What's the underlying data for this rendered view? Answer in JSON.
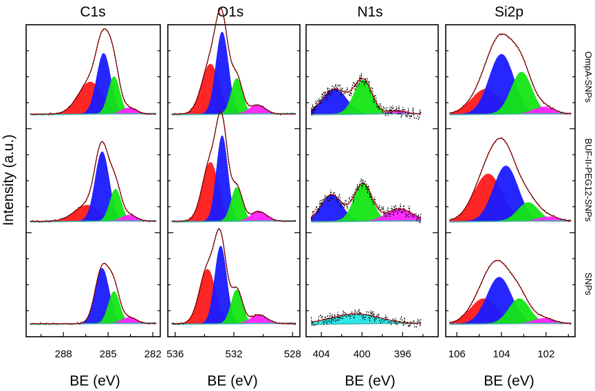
{
  "chart_data": {
    "type": "line",
    "description_kind": "xps-deconvolution-grid",
    "ylabel": "Intensity (a.u.)",
    "xlabel": "BE (eV)",
    "rows": [
      "OmpA-SNPs",
      "BUF-II-PEG12-SNPs",
      "SNPs"
    ],
    "component_colors": {
      "red": "#ff1a1a",
      "blue": "#1a1aff",
      "green": "#14e614",
      "magenta": "#ff22ff",
      "cyan": "#22e6e6",
      "envelope": "#cc0000",
      "data": "#000000",
      "baseline": "#3cb3a8"
    },
    "panels": [
      {
        "title": "C1s",
        "xlim": [
          290.5,
          281.5
        ],
        "ticks": [
          288,
          285,
          282
        ],
        "tick_labels": [
          "288",
          "285",
          "282"
        ],
        "rows": [
          {
            "noise": 0.01,
            "components": [
              {
                "color": "red",
                "center": 286.2,
                "height": 0.36,
                "fwhm": 1.9
              },
              {
                "color": "blue",
                "center": 285.3,
                "height": 0.68,
                "fwhm": 1.1
              },
              {
                "color": "green",
                "center": 284.6,
                "height": 0.42,
                "fwhm": 0.9
              },
              {
                "color": "magenta",
                "center": 283.6,
                "height": 0.07,
                "fwhm": 1.2
              }
            ]
          },
          {
            "noise": 0.01,
            "components": [
              {
                "color": "red",
                "center": 286.4,
                "height": 0.18,
                "fwhm": 2.0
              },
              {
                "color": "blue",
                "center": 285.4,
                "height": 0.78,
                "fwhm": 1.1
              },
              {
                "color": "green",
                "center": 284.5,
                "height": 0.36,
                "fwhm": 0.9
              },
              {
                "color": "magenta",
                "center": 283.6,
                "height": 0.07,
                "fwhm": 1.2
              }
            ]
          },
          {
            "noise": 0.01,
            "components": [
              {
                "color": "blue",
                "center": 285.4,
                "height": 0.62,
                "fwhm": 1.1
              },
              {
                "color": "green",
                "center": 284.6,
                "height": 0.36,
                "fwhm": 0.9
              },
              {
                "color": "magenta",
                "center": 283.6,
                "height": 0.07,
                "fwhm": 1.2
              }
            ]
          }
        ]
      },
      {
        "title": "O1s",
        "xlim": [
          536.5,
          527.5
        ],
        "ticks": [
          536,
          532,
          528
        ],
        "tick_labels": [
          "536",
          "532",
          "528"
        ],
        "rows": [
          {
            "noise": 0.01,
            "components": [
              {
                "color": "red",
                "center": 533.6,
                "height": 0.56,
                "fwhm": 1.4
              },
              {
                "color": "blue",
                "center": 532.8,
                "height": 0.92,
                "fwhm": 1.0
              },
              {
                "color": "green",
                "center": 531.8,
                "height": 0.4,
                "fwhm": 0.9
              },
              {
                "color": "magenta",
                "center": 530.4,
                "height": 0.1,
                "fwhm": 1.3
              }
            ]
          },
          {
            "noise": 0.01,
            "components": [
              {
                "color": "red",
                "center": 533.6,
                "height": 0.66,
                "fwhm": 1.3
              },
              {
                "color": "blue",
                "center": 532.8,
                "height": 0.96,
                "fwhm": 0.9
              },
              {
                "color": "green",
                "center": 531.8,
                "height": 0.38,
                "fwhm": 0.9
              },
              {
                "color": "magenta",
                "center": 530.3,
                "height": 0.11,
                "fwhm": 1.3
              }
            ]
          },
          {
            "noise": 0.01,
            "components": [
              {
                "color": "red",
                "center": 533.8,
                "height": 0.61,
                "fwhm": 1.3
              },
              {
                "color": "blue",
                "center": 532.9,
                "height": 0.87,
                "fwhm": 0.95
              },
              {
                "color": "green",
                "center": 531.8,
                "height": 0.38,
                "fwhm": 0.9
              },
              {
                "color": "magenta",
                "center": 530.3,
                "height": 0.1,
                "fwhm": 1.3
              }
            ]
          }
        ]
      },
      {
        "title": "N1s",
        "xlim": [
          405.5,
          392.5
        ],
        "ticks": [
          404,
          400,
          396
        ],
        "tick_labels": [
          "404",
          "400",
          "396"
        ],
        "data_range": [
          405,
          394.2
        ],
        "rows": [
          {
            "noise": 0.07,
            "components": [
              {
                "color": "blue",
                "center": 402.7,
                "height": 0.28,
                "fwhm": 2.8
              },
              {
                "color": "green",
                "center": 399.9,
                "height": 0.38,
                "fwhm": 2.1
              },
              {
                "color": "magenta",
                "center": 396.5,
                "height": 0.04,
                "fwhm": 2.0
              }
            ]
          },
          {
            "noise": 0.07,
            "components": [
              {
                "color": "blue",
                "center": 403.0,
                "height": 0.3,
                "fwhm": 2.4
              },
              {
                "color": "green",
                "center": 399.9,
                "height": 0.42,
                "fwhm": 2.1
              },
              {
                "color": "magenta",
                "center": 396.3,
                "height": 0.14,
                "fwhm": 3.0
              }
            ]
          },
          {
            "noise": 0.06,
            "components": [
              {
                "color": "cyan",
                "center": 400.6,
                "height": 0.11,
                "fwhm": 5.5
              }
            ]
          }
        ]
      },
      {
        "title": "Si2p",
        "xlim": [
          106.5,
          100.7
        ],
        "ticks": [
          106,
          104,
          102
        ],
        "tick_labels": [
          "106",
          "104",
          "102"
        ],
        "rows": [
          {
            "noise": 0.01,
            "components": [
              {
                "color": "red",
                "center": 104.7,
                "height": 0.28,
                "fwhm": 1.5
              },
              {
                "color": "blue",
                "center": 104.0,
                "height": 0.67,
                "fwhm": 1.3
              },
              {
                "color": "green",
                "center": 103.1,
                "height": 0.47,
                "fwhm": 1.1
              },
              {
                "color": "magenta",
                "center": 102.1,
                "height": 0.08,
                "fwhm": 1.1
              }
            ]
          },
          {
            "noise": 0.01,
            "components": [
              {
                "color": "red",
                "center": 104.6,
                "height": 0.53,
                "fwhm": 1.5
              },
              {
                "color": "blue",
                "center": 103.8,
                "height": 0.62,
                "fwhm": 1.3
              },
              {
                "color": "green",
                "center": 102.8,
                "height": 0.21,
                "fwhm": 1.1
              },
              {
                "color": "magenta",
                "center": 101.9,
                "height": 0.05,
                "fwhm": 1.1
              }
            ]
          },
          {
            "noise": 0.01,
            "components": [
              {
                "color": "red",
                "center": 104.8,
                "height": 0.28,
                "fwhm": 1.4
              },
              {
                "color": "blue",
                "center": 104.1,
                "height": 0.52,
                "fwhm": 1.3
              },
              {
                "color": "green",
                "center": 103.2,
                "height": 0.28,
                "fwhm": 1.1
              },
              {
                "color": "magenta",
                "center": 102.1,
                "height": 0.06,
                "fwhm": 1.1
              }
            ]
          }
        ]
      }
    ]
  }
}
